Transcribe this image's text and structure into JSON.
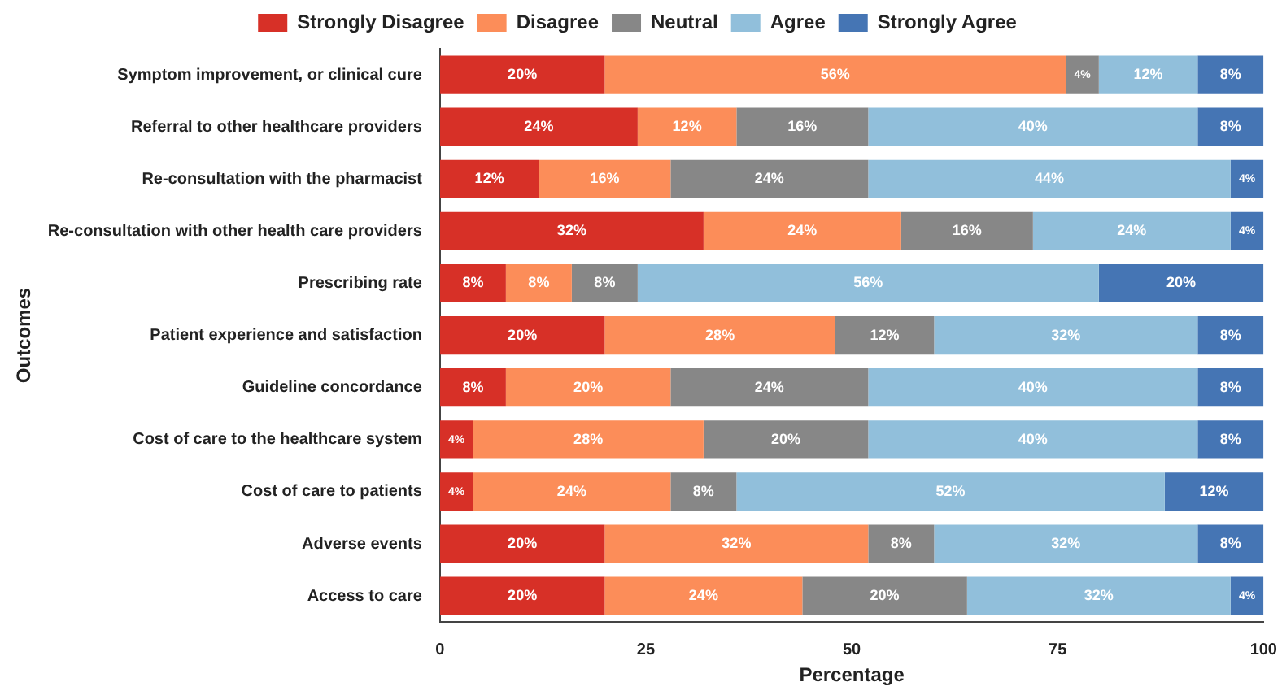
{
  "chart_data": {
    "type": "bar",
    "orientation": "horizontal",
    "stacked": true,
    "xlabel": "Percentage",
    "ylabel": "Outcomes",
    "legend": "top",
    "grid": false,
    "categories": [
      "Symptom improvement, or clinical cure",
      "Referral to other healthcare providers",
      "Re-consultation with the pharmacist",
      "Re-consultation with other health care providers",
      "Prescribing rate",
      "Patient experience and satisfaction",
      "Guideline concordance",
      "Cost of care to the healthcare system",
      "Cost of care to patients",
      "Adverse events",
      "Access to care"
    ],
    "xlim": [
      0,
      100
    ],
    "xticks": [
      0,
      25,
      50,
      75,
      100
    ],
    "series": [
      {
        "name": "Strongly Disagree",
        "color": "#d73027",
        "values": [
          20,
          24,
          12,
          32,
          8,
          20,
          8,
          4,
          4,
          20,
          20
        ],
        "value_labels": [
          "20%",
          "24%",
          "12%",
          "32%",
          "8%",
          "20%",
          "8%",
          "4%",
          "4%",
          "20%",
          "20%"
        ]
      },
      {
        "name": "Disagree",
        "color": "#fc8d59",
        "values": [
          56,
          12,
          16,
          24,
          8,
          28,
          20,
          28,
          24,
          32,
          24
        ],
        "value_labels": [
          "56%",
          "12%",
          "16%",
          "24%",
          "8%",
          "28%",
          "20%",
          "28%",
          "24%",
          "32%",
          "24%"
        ]
      },
      {
        "name": "Neutral",
        "color": "#878787",
        "values": [
          4,
          16,
          24,
          16,
          8,
          12,
          24,
          20,
          8,
          8,
          20
        ],
        "value_labels": [
          "4%",
          "16%",
          "24%",
          "16%",
          "8%",
          "12%",
          "24%",
          "20%",
          "8%",
          "8%",
          "20%"
        ]
      },
      {
        "name": "Agree",
        "color": "#91bfdb",
        "values": [
          12,
          40,
          44,
          24,
          56,
          32,
          40,
          40,
          52,
          32,
          32
        ],
        "value_labels": [
          "12%",
          "40%",
          "44%",
          "24%",
          "56%",
          "32%",
          "40%",
          "40%",
          "52%",
          "32%",
          "32%"
        ]
      },
      {
        "name": "Strongly Agree",
        "color": "#4575b4",
        "values": [
          8,
          8,
          4,
          4,
          20,
          8,
          8,
          8,
          12,
          8,
          4
        ],
        "value_labels": [
          "8%",
          "8%",
          "4%",
          "4%",
          "20%",
          "8%",
          "8%",
          "8%",
          "12%",
          "8%",
          "4%"
        ]
      }
    ]
  }
}
